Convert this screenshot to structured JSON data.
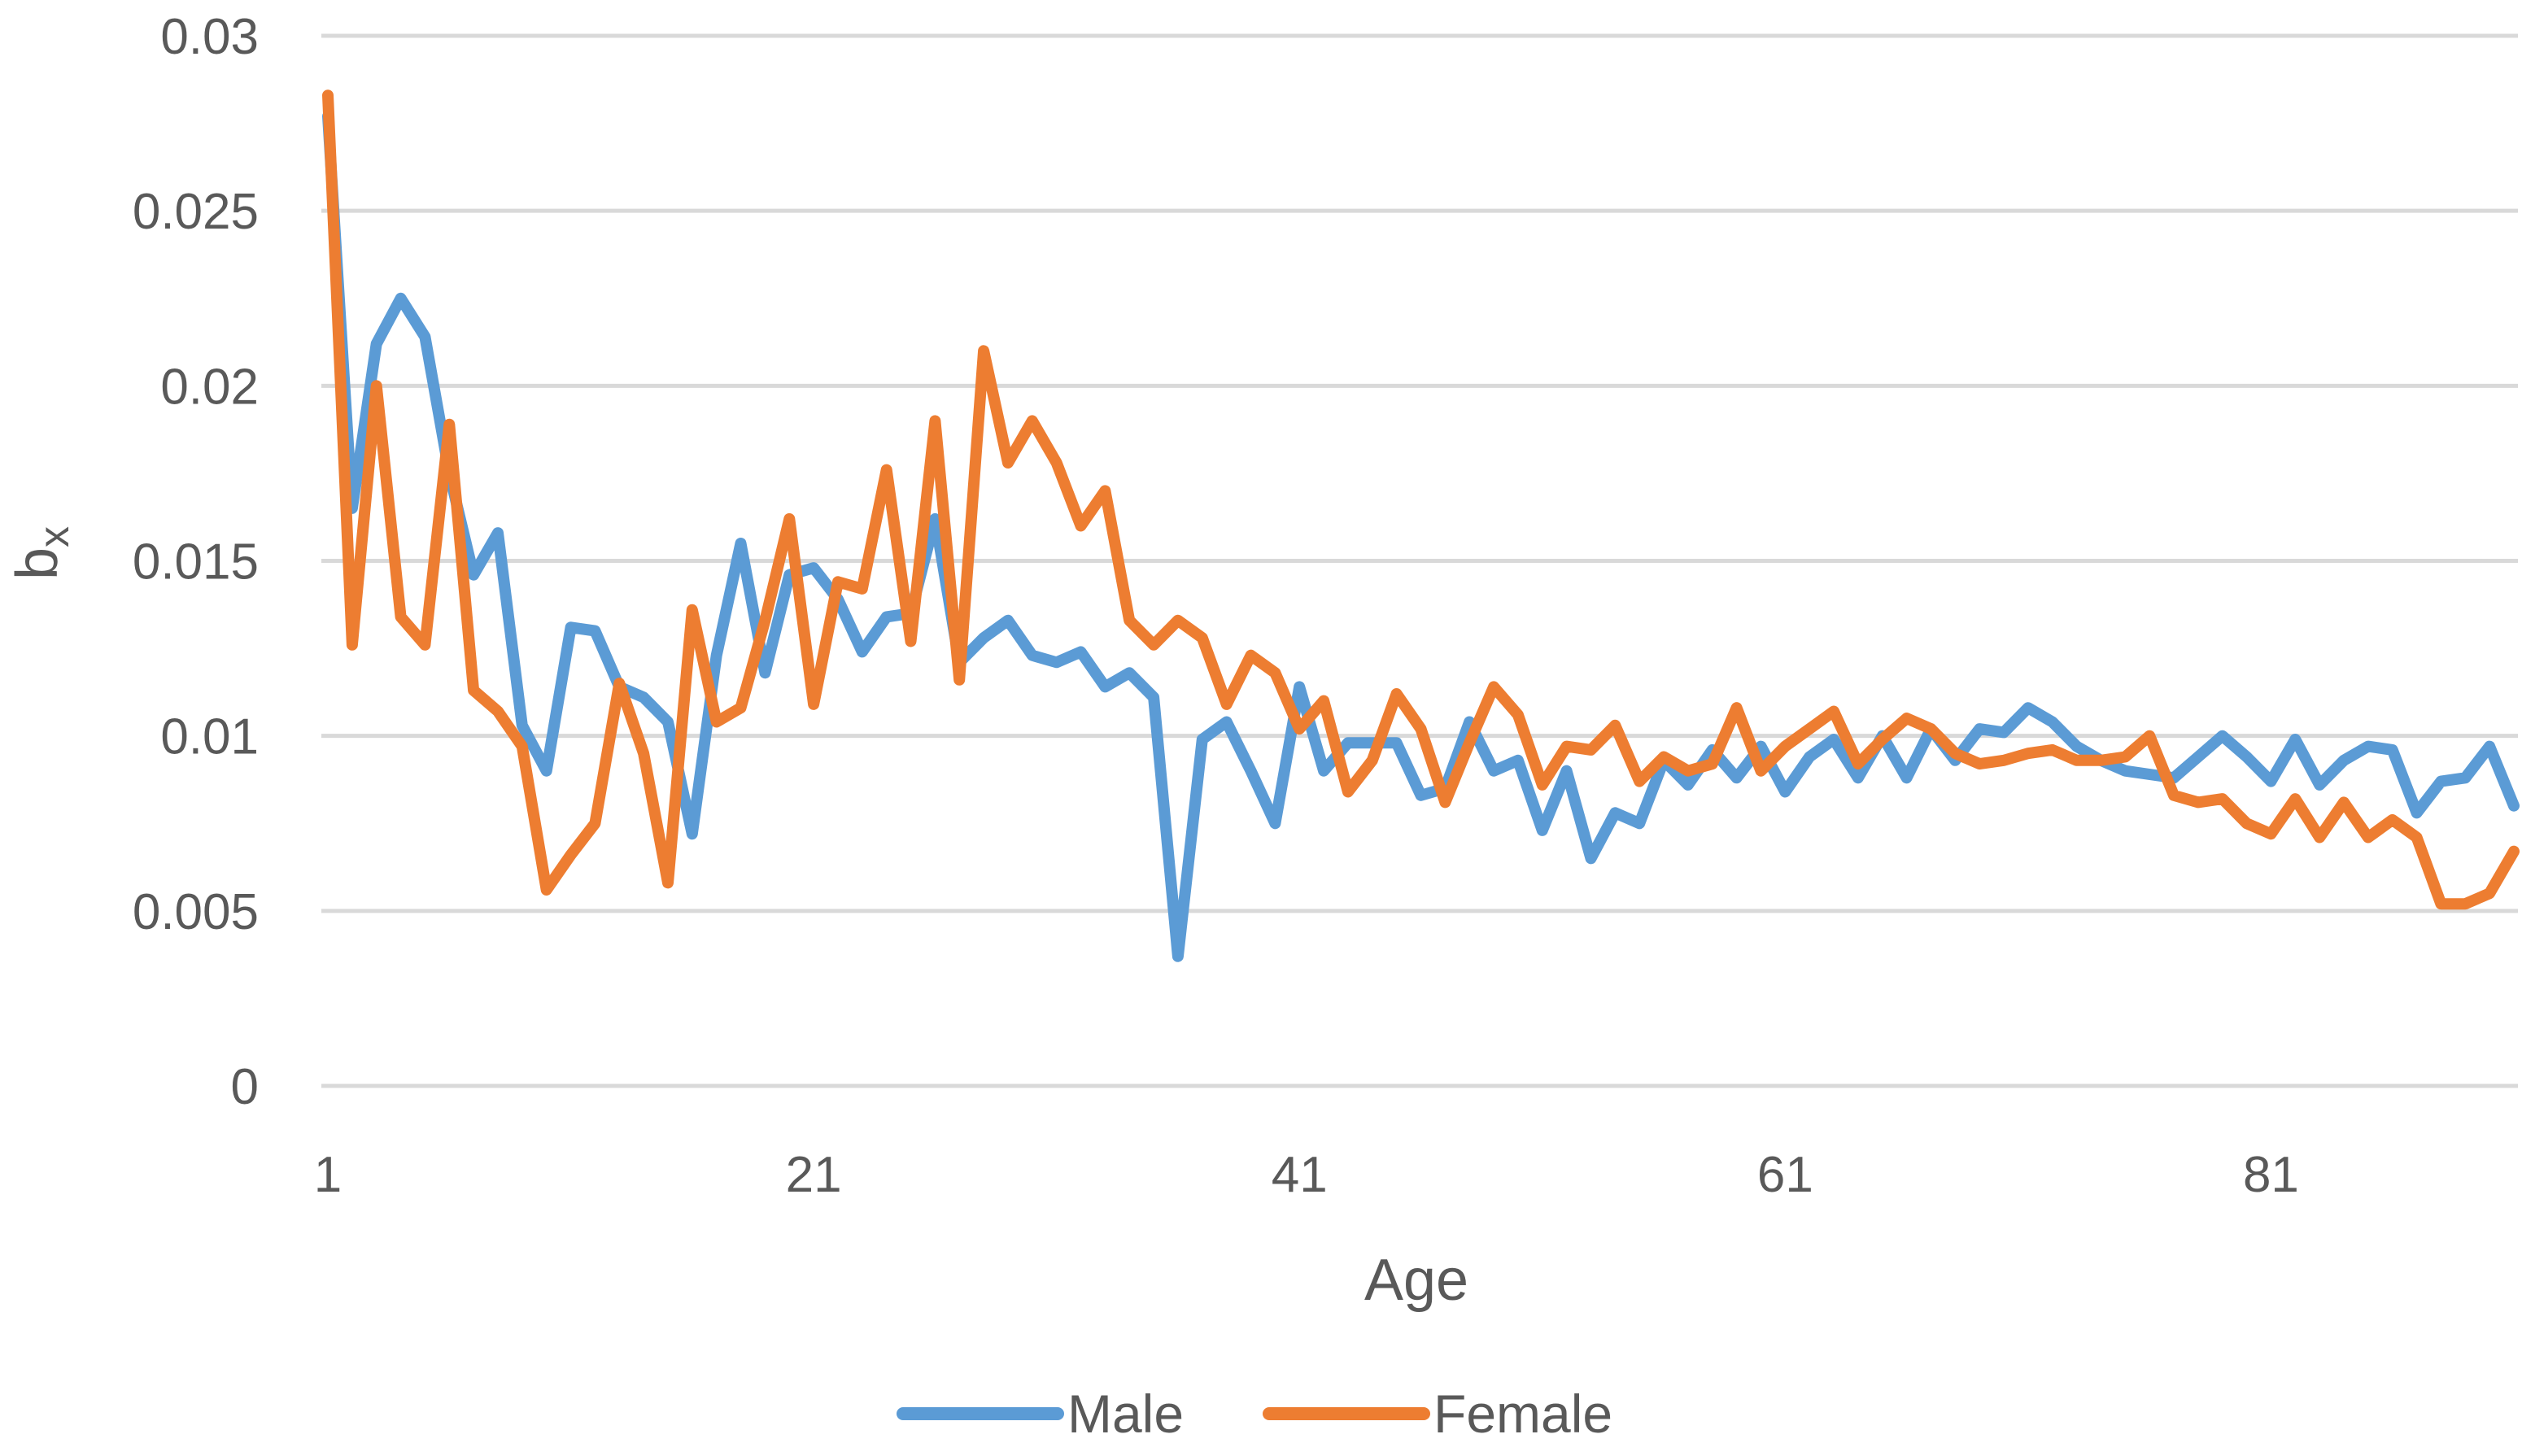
{
  "chart_data": {
    "type": "line",
    "title": "",
    "xlabel": "Age",
    "ylabel": {
      "main": "b",
      "subscript": "x"
    },
    "x_start": 1,
    "x_end": 91,
    "xticks": [
      1,
      21,
      41,
      61,
      81
    ],
    "xtick_labels": [
      "1",
      "21",
      "41",
      "61",
      "81"
    ],
    "ylim": [
      0,
      0.03
    ],
    "yticks": [
      0,
      0.005,
      0.01,
      0.015,
      0.02,
      0.025,
      0.03
    ],
    "ytick_labels": [
      "0",
      "0.005",
      "0.01",
      "0.015",
      "0.02",
      "0.025",
      "0.03"
    ],
    "grid": true,
    "legend_position": "bottom",
    "series": [
      {
        "name": "Male",
        "color": "#5b9bd5",
        "values": [
          0.0277,
          0.0165,
          0.0212,
          0.0225,
          0.0214,
          0.0175,
          0.0146,
          0.0158,
          0.0103,
          0.009,
          0.0131,
          0.013,
          0.0114,
          0.0111,
          0.0104,
          0.0072,
          0.0123,
          0.0155,
          0.0118,
          0.0146,
          0.0148,
          0.0139,
          0.0124,
          0.0134,
          0.0135,
          0.0162,
          0.0121,
          0.0128,
          0.0133,
          0.0123,
          0.0121,
          0.0124,
          0.0114,
          0.0118,
          0.0111,
          0.0037,
          0.0099,
          0.0104,
          0.009,
          0.0075,
          0.0114,
          0.009,
          0.0098,
          0.0098,
          0.0098,
          0.0083,
          0.0085,
          0.0104,
          0.009,
          0.0093,
          0.0073,
          0.009,
          0.0065,
          0.0078,
          0.0075,
          0.0093,
          0.0086,
          0.0096,
          0.0088,
          0.0097,
          0.0084,
          0.0094,
          0.0099,
          0.0088,
          0.01,
          0.0088,
          0.0102,
          0.0093,
          0.0102,
          0.0101,
          0.0108,
          0.0104,
          0.0097,
          0.0093,
          0.009,
          0.0089,
          0.0088,
          0.0094,
          0.01,
          0.0094,
          0.0087,
          0.0099,
          0.0086,
          0.0093,
          0.0097,
          0.0096,
          0.0078,
          0.0087,
          0.0088,
          0.0097,
          0.008
        ]
      },
      {
        "name": "Female",
        "color": "#ed7d31",
        "values": [
          0.0283,
          0.0126,
          0.02,
          0.0134,
          0.0126,
          0.0189,
          0.0113,
          0.0107,
          0.0097,
          0.0056,
          0.0066,
          0.0075,
          0.0115,
          0.0095,
          0.0058,
          0.0136,
          0.0104,
          0.0108,
          0.0133,
          0.0162,
          0.0109,
          0.0144,
          0.0142,
          0.0176,
          0.0127,
          0.019,
          0.0116,
          0.021,
          0.0178,
          0.019,
          0.0178,
          0.016,
          0.017,
          0.0133,
          0.0126,
          0.0133,
          0.0128,
          0.0109,
          0.0123,
          0.0118,
          0.0102,
          0.011,
          0.0084,
          0.0093,
          0.0112,
          0.0102,
          0.0081,
          0.0098,
          0.0114,
          0.0106,
          0.0086,
          0.0097,
          0.0096,
          0.0103,
          0.0087,
          0.0094,
          0.009,
          0.0092,
          0.0108,
          0.009,
          0.0097,
          0.0102,
          0.0107,
          0.0092,
          0.0099,
          0.0105,
          0.0102,
          0.0095,
          0.0092,
          0.0093,
          0.0095,
          0.0096,
          0.0093,
          0.0093,
          0.0094,
          0.01,
          0.0083,
          0.0081,
          0.0082,
          0.0075,
          0.0072,
          0.0082,
          0.0071,
          0.0081,
          0.0071,
          0.0076,
          0.0071,
          0.0052,
          0.0052,
          0.0055,
          0.0067
        ]
      }
    ]
  }
}
